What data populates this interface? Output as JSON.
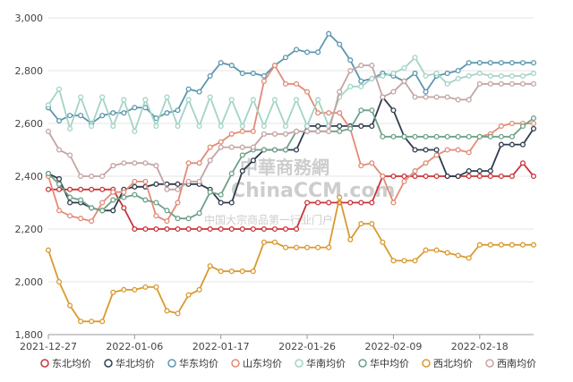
{
  "chart_data": {
    "type": "line",
    "title": "",
    "xlabel": "",
    "ylabel": "",
    "ylim": [
      1800,
      3000
    ],
    "y_ticks": [
      "1,800",
      "2,000",
      "2,200",
      "2,400",
      "2,600",
      "2,800",
      "3,000"
    ],
    "y_tick_values": [
      1800,
      2000,
      2200,
      2400,
      2600,
      2800,
      3000
    ],
    "x_tick_labels": [
      {
        "index": 0,
        "label": "2021-12-27"
      },
      {
        "index": 8,
        "label": "2022-01-06"
      },
      {
        "index": 16,
        "label": "2022-01-17"
      },
      {
        "index": 24,
        "label": "2022-01-26"
      },
      {
        "index": 32,
        "label": "2022-02-09"
      },
      {
        "index": 40,
        "label": "2022-02-18"
      }
    ],
    "grid": "horizontal",
    "legend_position": "bottom",
    "series": [
      {
        "name": "东北均价",
        "color": "#c9343a",
        "values": [
          2350,
          2350,
          2350,
          2350,
          2350,
          2350,
          2350,
          2280,
          2200,
          2200,
          2200,
          2200,
          2200,
          2200,
          2200,
          2200,
          2200,
          2200,
          2200,
          2200,
          2200,
          2200,
          2200,
          2200,
          2300,
          2300,
          2300,
          2300,
          2300,
          2300,
          2300,
          2400,
          2400,
          2400,
          2400,
          2400,
          2400,
          2400,
          2400,
          2400,
          2400,
          2400,
          2400,
          2400,
          2450,
          2400
        ]
      },
      {
        "name": "华北均价",
        "color": "#2f3c4d",
        "values": [
          2410,
          2390,
          2300,
          2300,
          2280,
          2270,
          2270,
          2350,
          2360,
          2360,
          2370,
          2370,
          2370,
          2370,
          2370,
          2350,
          2300,
          2300,
          2420,
          2460,
          2500,
          2500,
          2500,
          2500,
          2590,
          2590,
          2590,
          2590,
          2590,
          2590,
          2590,
          2700,
          2650,
          2550,
          2500,
          2500,
          2500,
          2400,
          2400,
          2420,
          2420,
          2420,
          2520,
          2520,
          2520,
          2580
        ]
      },
      {
        "name": "华东均价",
        "color": "#5c97ae",
        "values": [
          2660,
          2610,
          2630,
          2630,
          2600,
          2630,
          2640,
          2640,
          2660,
          2660,
          2620,
          2640,
          2650,
          2730,
          2720,
          2780,
          2830,
          2820,
          2790,
          2790,
          2780,
          2820,
          2850,
          2880,
          2870,
          2870,
          2940,
          2900,
          2840,
          2760,
          2770,
          2790,
          2780,
          2760,
          2790,
          2720,
          2780,
          2790,
          2800,
          2830,
          2830,
          2830,
          2830,
          2830,
          2830,
          2830
        ]
      },
      {
        "name": "山东均价",
        "color": "#e28b76",
        "values": [
          2400,
          2270,
          2250,
          2240,
          2230,
          2300,
          2340,
          2340,
          2380,
          2380,
          2250,
          2230,
          2300,
          2450,
          2450,
          2510,
          2530,
          2560,
          2570,
          2570,
          2760,
          2820,
          2750,
          2750,
          2720,
          2640,
          2640,
          2640,
          2580,
          2440,
          2450,
          2400,
          2300,
          2380,
          2420,
          2450,
          2480,
          2500,
          2500,
          2490,
          2550,
          2560,
          2590,
          2600,
          2600,
          2600
        ]
      },
      {
        "name": "华南均价",
        "color": "#a3d4c6",
        "values": [
          2670,
          2730,
          2580,
          2700,
          2590,
          2700,
          2590,
          2690,
          2570,
          2690,
          2590,
          2700,
          2590,
          2690,
          2590,
          2700,
          2590,
          2690,
          2590,
          2690,
          2590,
          2690,
          2590,
          2690,
          2590,
          2690,
          2590,
          2700,
          2740,
          2740,
          2770,
          2780,
          2790,
          2810,
          2850,
          2780,
          2790,
          2750,
          2770,
          2780,
          2790,
          2780,
          2780,
          2780,
          2780,
          2790
        ]
      },
      {
        "name": "华中均价",
        "color": "#6ea087",
        "values": [
          2410,
          2370,
          2320,
          2310,
          2280,
          2270,
          2310,
          2320,
          2330,
          2310,
          2300,
          2270,
          2240,
          2240,
          2260,
          2340,
          2330,
          2410,
          2480,
          2500,
          2500,
          2500,
          2500,
          2570,
          2570,
          2570,
          2570,
          2570,
          2580,
          2650,
          2650,
          2550,
          2550,
          2550,
          2550,
          2550,
          2550,
          2550,
          2550,
          2550,
          2550,
          2550,
          2550,
          2550,
          2590,
          2620
        ]
      },
      {
        "name": "西北均价",
        "color": "#d99a2e",
        "values": [
          2120,
          2000,
          1910,
          1850,
          1850,
          1850,
          1960,
          1970,
          1970,
          1980,
          1980,
          1890,
          1880,
          1950,
          1970,
          2060,
          2040,
          2040,
          2040,
          2040,
          2150,
          2150,
          2130,
          2130,
          2130,
          2130,
          2130,
          2320,
          2160,
          2220,
          2220,
          2150,
          2080,
          2080,
          2080,
          2120,
          2120,
          2110,
          2100,
          2090,
          2140,
          2140,
          2140,
          2140,
          2140,
          2140
        ]
      },
      {
        "name": "西南均价",
        "color": "#c4a3a3",
        "values": [
          2570,
          2500,
          2480,
          2400,
          2400,
          2400,
          2440,
          2450,
          2450,
          2450,
          2440,
          2350,
          2350,
          2380,
          2380,
          2460,
          2510,
          2510,
          2510,
          2510,
          2560,
          2560,
          2560,
          2570,
          2570,
          2570,
          2570,
          2720,
          2800,
          2820,
          2820,
          2700,
          2720,
          2760,
          2700,
          2700,
          2700,
          2700,
          2690,
          2690,
          2750,
          2750,
          2750,
          2750,
          2750,
          2750
        ]
      }
    ]
  },
  "watermark": {
    "brand": "中華商務網",
    "site": "ChinaCCM.com",
    "slogan": "中国大宗商品第一行业门户"
  }
}
